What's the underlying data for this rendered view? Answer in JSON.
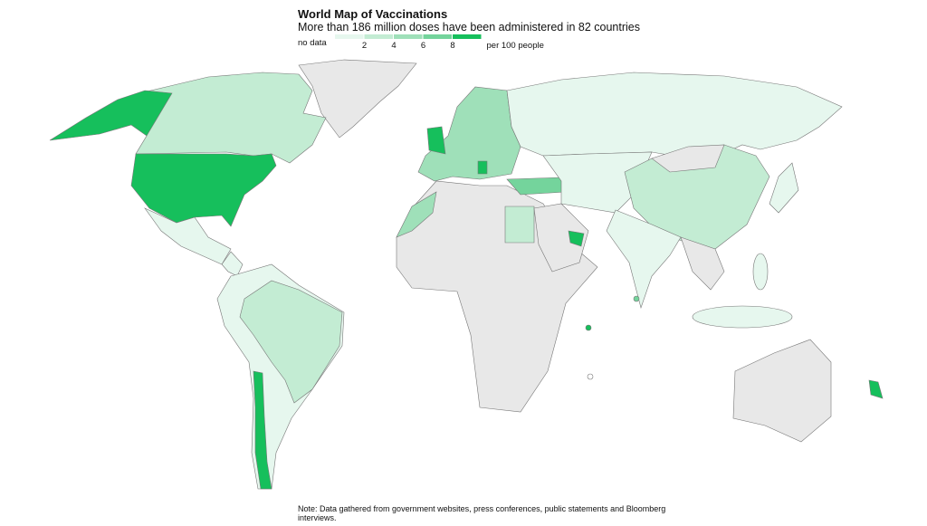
{
  "header": {
    "title": "World Map of Vaccinations",
    "subtitle": "More than 186 million doses have been administered in 82 countries"
  },
  "legend": {
    "no_data": "no data",
    "ticks": [
      2,
      4,
      6,
      8
    ],
    "unit": "per 100 people",
    "colors": [
      "#e6f7ee",
      "#c3ecd3",
      "#9fe0b9",
      "#74d49c",
      "#16bf5c"
    ]
  },
  "note": "Note: Data gathered from government websites, press conferences, public statements and Bloomberg interviews."
}
